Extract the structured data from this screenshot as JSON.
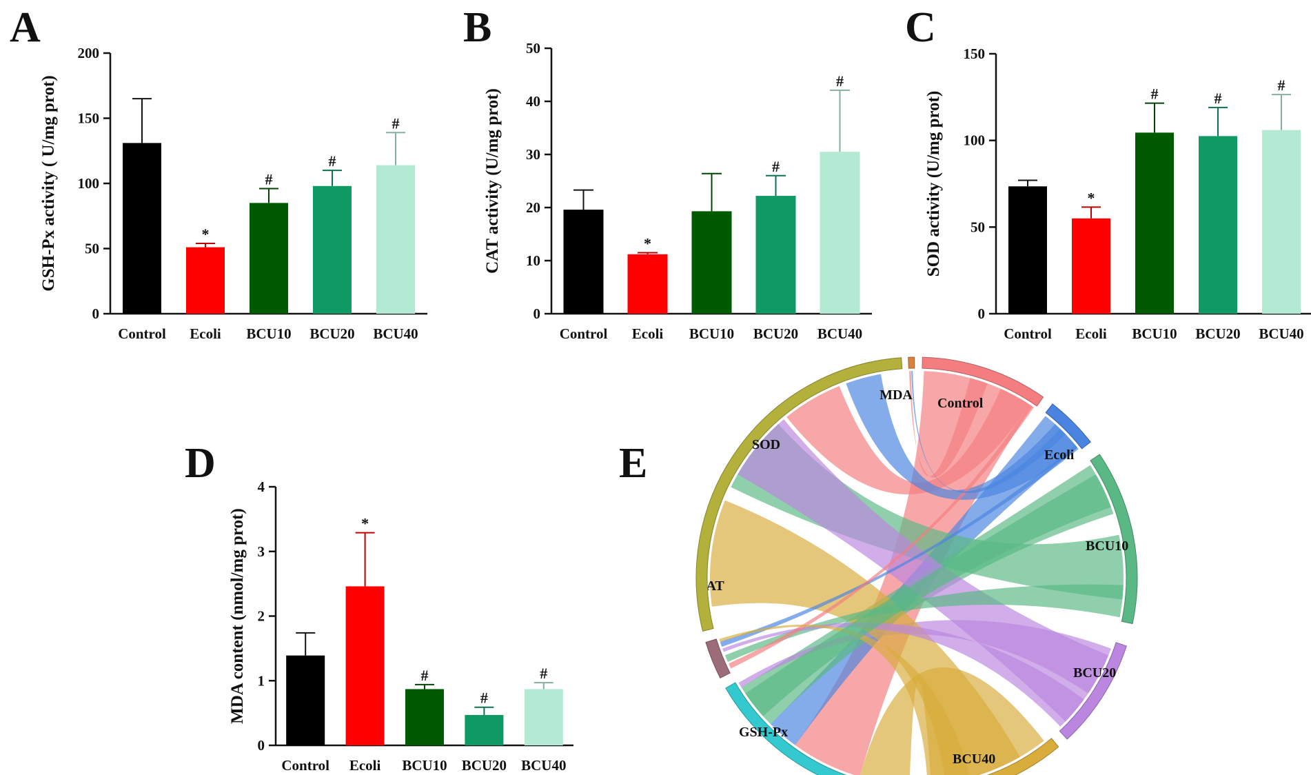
{
  "chart_data": [
    {
      "panel": "A",
      "type": "bar",
      "title": "",
      "xlabel": "",
      "ylabel": "GSH-Px activity ( U/mg prot)",
      "ylim": [
        0,
        200
      ],
      "yticks": [
        "0",
        "50",
        "100",
        "150",
        "200"
      ],
      "categories": [
        "Control",
        "Ecoli",
        "BCU10",
        "BCU20",
        "BCU40"
      ],
      "values": [
        131,
        51,
        85,
        98,
        114
      ],
      "errors": [
        34,
        3,
        11,
        12,
        25
      ],
      "marks": [
        "",
        "*",
        "#",
        "#",
        "#"
      ]
    },
    {
      "panel": "B",
      "type": "bar",
      "title": "",
      "xlabel": "",
      "ylabel": "CAT activity (U/mg prot)",
      "ylim": [
        0,
        50
      ],
      "yticks": [
        "0",
        "10",
        "20",
        "30",
        "40",
        "50"
      ],
      "categories": [
        "Control",
        "Ecoli",
        "BCU10",
        "BCU20",
        "BCU40"
      ],
      "values": [
        19.6,
        11.2,
        19.3,
        22.2,
        30.5
      ],
      "errors": [
        3.7,
        0.3,
        7.1,
        3.8,
        11.6
      ],
      "marks": [
        "",
        "*",
        "",
        "#",
        "#"
      ]
    },
    {
      "panel": "C",
      "type": "bar",
      "title": "",
      "xlabel": "",
      "ylabel": "SOD activity (U/mg prot)",
      "ylim": [
        0,
        150
      ],
      "yticks": [
        "0",
        "50",
        "100",
        "150"
      ],
      "categories": [
        "Control",
        "Ecoli",
        "BCU10",
        "BCU20",
        "BCU40"
      ],
      "values": [
        73.5,
        55,
        104.5,
        102.5,
        106
      ],
      "errors": [
        3.5,
        6.5,
        17,
        16.5,
        20.5
      ],
      "marks": [
        "",
        "*",
        "#",
        "#",
        "#"
      ]
    },
    {
      "panel": "D",
      "type": "bar",
      "title": "",
      "xlabel": "",
      "ylabel": "MDA content (nmol/mg prot)",
      "ylim": [
        0,
        4
      ],
      "yticks": [
        "0",
        "1",
        "2",
        "3",
        "4"
      ],
      "categories": [
        "Control",
        "Ecoli",
        "BCU10",
        "BCU20",
        "BCU40"
      ],
      "values": [
        1.39,
        2.46,
        0.87,
        0.47,
        0.87
      ],
      "errors": [
        0.35,
        0.83,
        0.07,
        0.12,
        0.1
      ],
      "marks": [
        "",
        "*",
        "#",
        "#",
        "#"
      ]
    },
    {
      "panel": "E",
      "type": "chord",
      "title": "",
      "sectors": [
        "MDA",
        "Control",
        "Ecoli",
        "BCU10",
        "BCU20",
        "BCU40",
        "GSH-Px",
        "CAT",
        "SOD"
      ]
    }
  ],
  "colors": {
    "Control": "#000000",
    "Ecoli": "#ff0000",
    "BCU10": "#005a00",
    "BCU20": "#0f9964",
    "BCU40": "#b3ead3",
    "errorbar": "#333333"
  },
  "chord_colors": {
    "MDA": "#d9823f",
    "Control": "#f47d80",
    "Ecoli": "#4a84e0",
    "BCU10": "#5ab885",
    "BCU20": "#bb86e0",
    "BCU40": "#d8ad3c",
    "GSH-Px": "#33c9cf",
    "CAT": "#9c6c78",
    "SOD": "#b3b13c"
  }
}
